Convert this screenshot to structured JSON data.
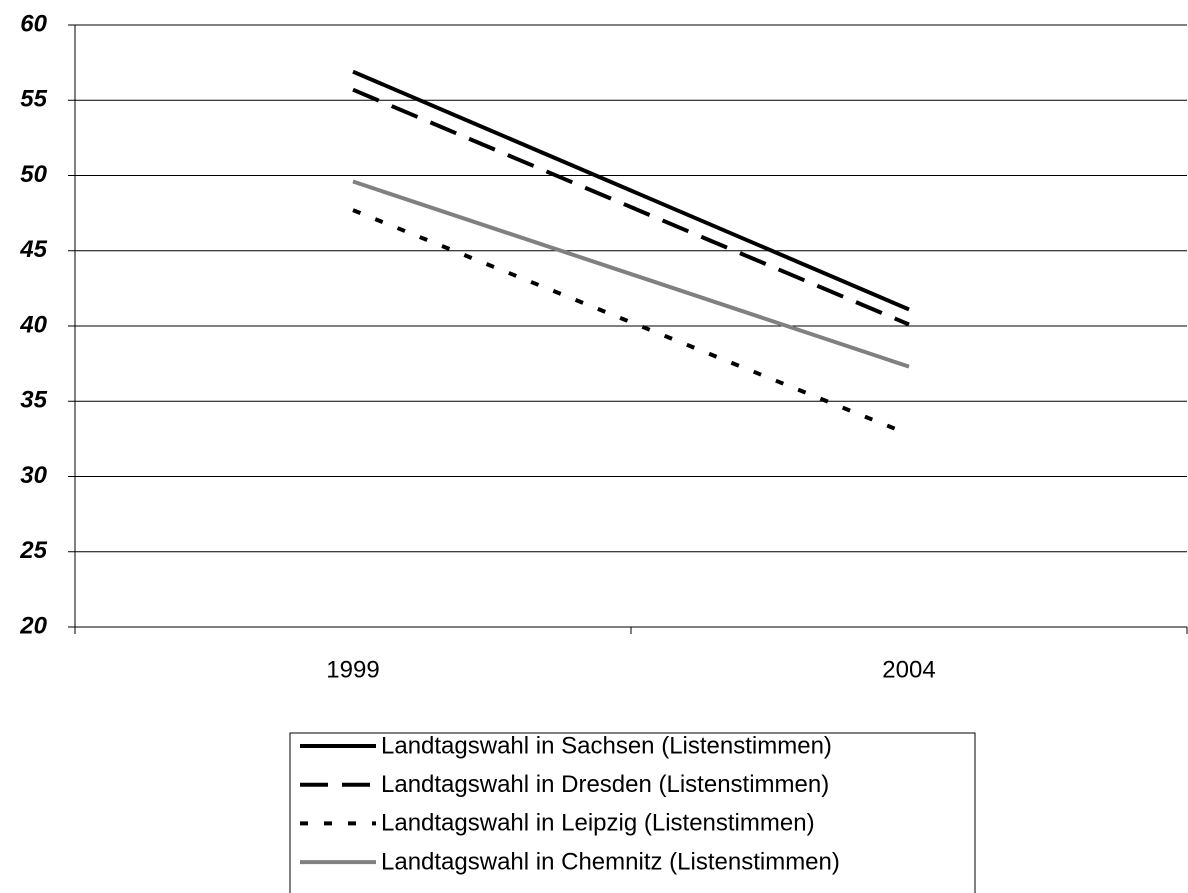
{
  "chart_data": {
    "type": "line",
    "categories": [
      "1999",
      "2004"
    ],
    "series": [
      {
        "name": "Landtagswahl in Sachsen (Listenstimmen)",
        "color": "#000000",
        "dash": "solid",
        "values": [
          56.9,
          41.1
        ]
      },
      {
        "name": "Landtagswahl in Dresden (Listenstimmen)",
        "color": "#000000",
        "dash": "long",
        "values": [
          55.7,
          40.1
        ]
      },
      {
        "name": "Landtagswahl in Leipzig (Listenstimmen)",
        "color": "#000000",
        "dash": "short",
        "values": [
          47.7,
          32.8
        ]
      },
      {
        "name": "Landtagswahl in Chemnitz (Listenstimmen)",
        "color": "#808080",
        "dash": "solid",
        "values": [
          49.6,
          37.3
        ]
      }
    ],
    "ylim": [
      20,
      60
    ],
    "yticks": [
      20,
      25,
      30,
      35,
      40,
      45,
      50,
      55,
      60
    ],
    "grid": true,
    "legend": "bottom"
  }
}
